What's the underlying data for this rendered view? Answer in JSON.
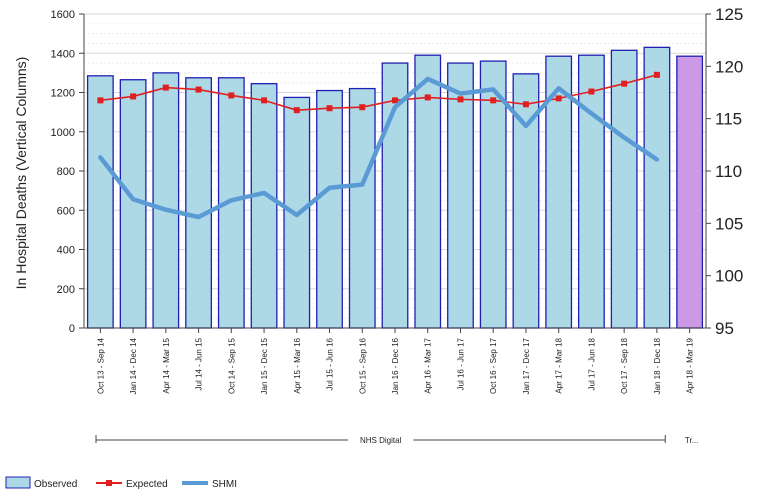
{
  "chart_data": {
    "type": "bar",
    "ylabel": "In Hospital Deaths (Vertical Columns)",
    "ylim": [
      0,
      1600
    ],
    "y_ticks": [
      0,
      200,
      400,
      600,
      800,
      1000,
      1200,
      1400,
      1600
    ],
    "y2lim": [
      95,
      125
    ],
    "y2_ticks": [
      95,
      100,
      105,
      110,
      115,
      120,
      125
    ],
    "grid": true,
    "categories": [
      "Oct 13 - Sep 14",
      "Jan 14 - Dec 14",
      "Apr 14 - Mar 15",
      "Jul 14 - Jun 15",
      "Oct 14 - Sep 15",
      "Jan 15 - Dec 15",
      "Apr 15 - Mar 16",
      "Jul 15 - Jun 16",
      "Oct 15 - Sep 16",
      "Jan 16 - Dec 16",
      "Apr 16 - Mar 17",
      "Jul 16 - Jun 17",
      "Oct 16 - Sep 17",
      "Jan 17 - Dec 17",
      "Apr 17 - Mar 18",
      "Jul 17 - Jun 18",
      "Oct 17 - Sep 18",
      "Jan 18 - Dec 18",
      "Apr 18 - Mar 19"
    ],
    "series": [
      {
        "name": "Observed",
        "type": "bar",
        "axis": "left",
        "color": "#add8e6",
        "border": "#1f1fb4",
        "values": [
          1285,
          1265,
          1300,
          1275,
          1275,
          1245,
          1175,
          1210,
          1220,
          1350,
          1390,
          1350,
          1360,
          1295,
          1385,
          1390,
          1415,
          1430,
          1385
        ],
        "highlight": {
          "index": 18,
          "color": "#cc99e6"
        }
      },
      {
        "name": "Expected",
        "type": "line",
        "axis": "left",
        "color": "#e02020",
        "values": [
          1160,
          1180,
          1225,
          1215,
          1185,
          1160,
          1110,
          1120,
          1125,
          1160,
          1175,
          1165,
          1160,
          1140,
          1170,
          1205,
          1245,
          1290,
          null
        ]
      },
      {
        "name": "SHMI",
        "type": "line",
        "axis": "right",
        "color": "#5b9bd5",
        "values": [
          111.3,
          107.3,
          106.3,
          105.6,
          107.2,
          107.9,
          105.8,
          108.4,
          108.7,
          116.1,
          118.8,
          117.4,
          117.8,
          114.3,
          117.9,
          115.5,
          113.2,
          111.1,
          null
        ]
      }
    ],
    "groups": [
      {
        "label": "NHS Digital",
        "from": 0,
        "to": 17
      },
      {
        "label": "Tr...",
        "from": 18,
        "to": 18
      }
    ],
    "legend": {
      "placement": "bottom-left",
      "items": [
        "Observed",
        "Expected",
        "SHMI"
      ]
    }
  }
}
